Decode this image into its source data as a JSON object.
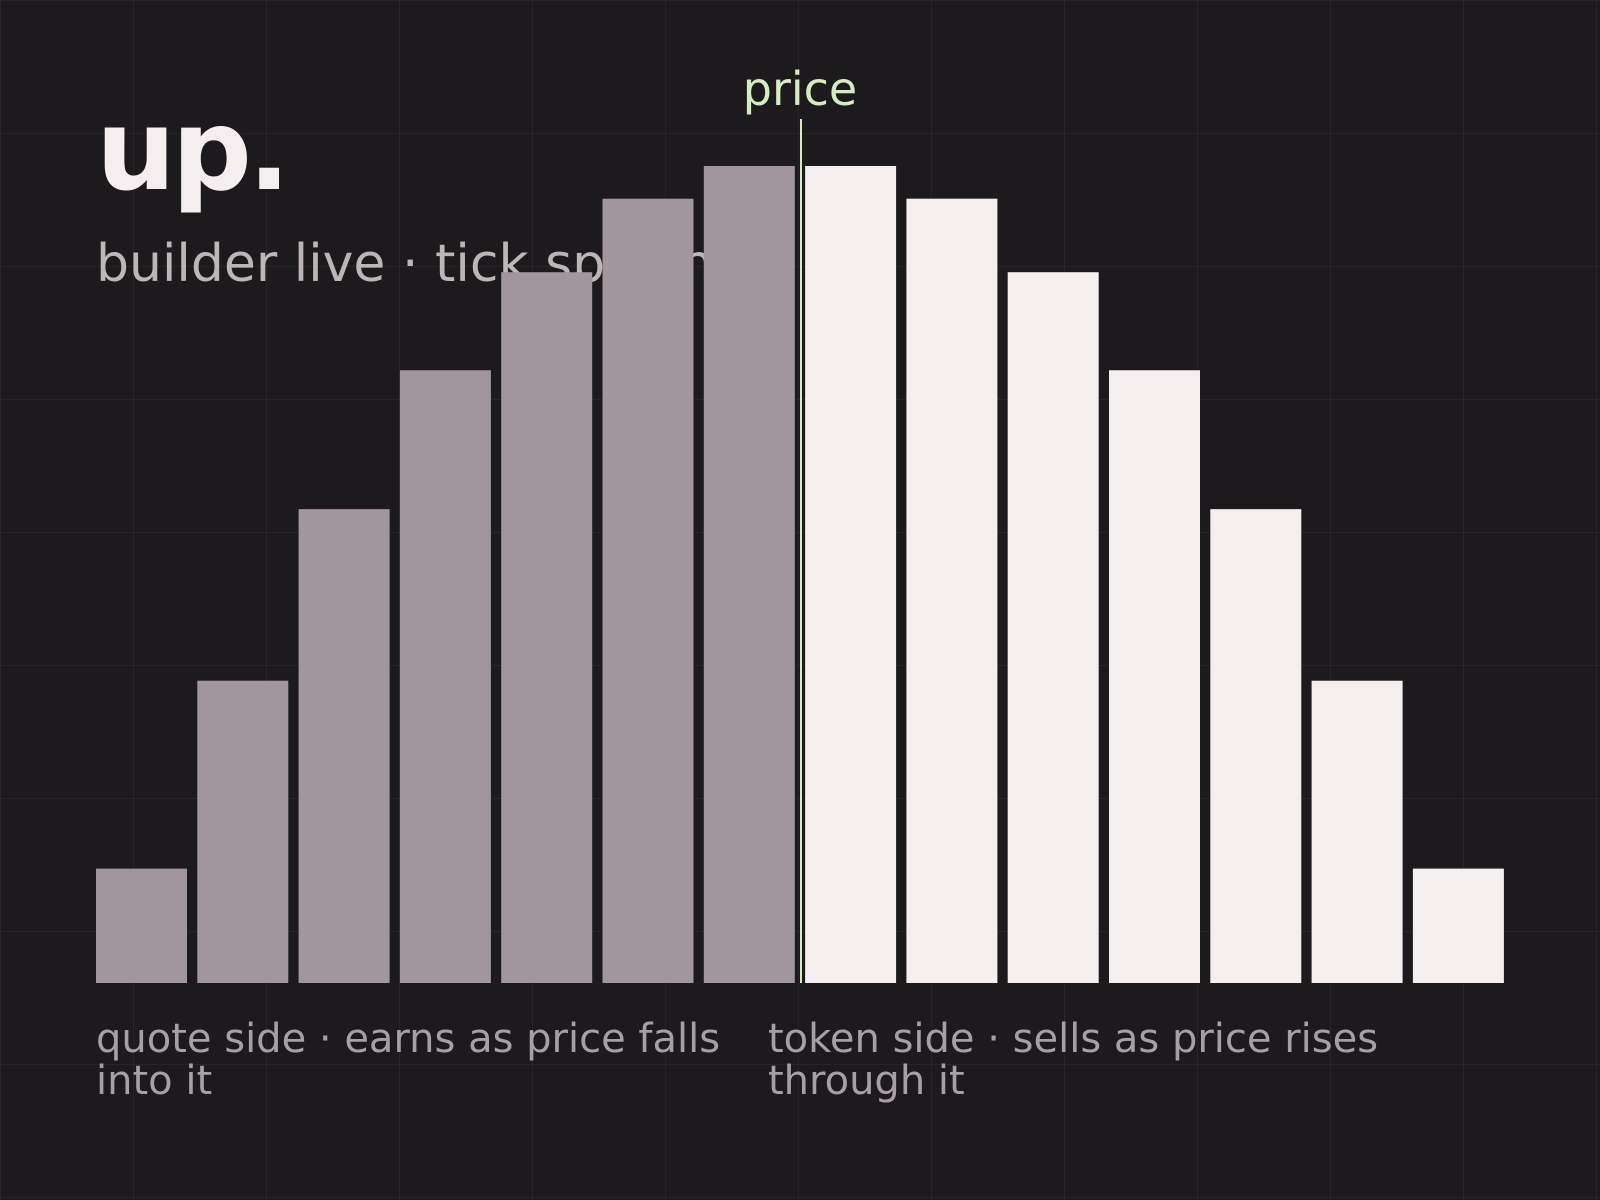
{
  "chart_data": {
    "type": "bar",
    "title": "up.",
    "subtitle": "builder live · tick spacing",
    "annotation": {
      "text": "price",
      "color": "#d6ebc0"
    },
    "categories": [
      null,
      null,
      null,
      null,
      null,
      null,
      null,
      null,
      null,
      null,
      null,
      null,
      null,
      null
    ],
    "series": [
      {
        "name": "quote side · earns as price falls into it",
        "color": "#a0969b",
        "values": [
          14,
          37,
          58,
          75,
          87,
          96,
          100,
          null,
          null,
          null,
          null,
          null,
          null,
          null
        ]
      },
      {
        "name": "token side · sells as price rises through it",
        "color": "#f4eeee",
        "values": [
          null,
          null,
          null,
          null,
          null,
          null,
          null,
          100,
          96,
          87,
          75,
          58,
          37,
          14
        ]
      }
    ],
    "ylim": [
      0,
      100
    ]
  }
}
